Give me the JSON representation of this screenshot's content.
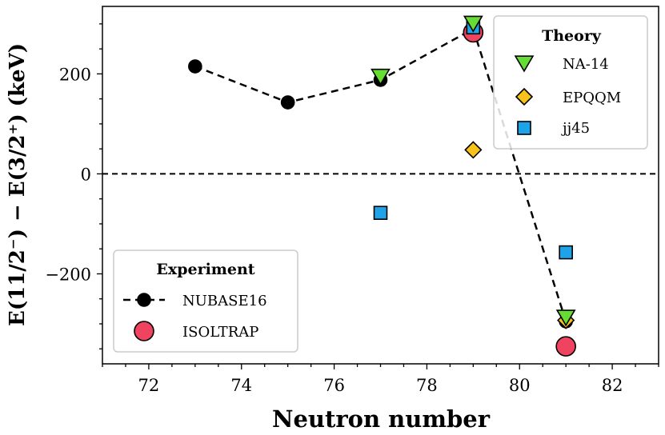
{
  "chart_data": {
    "type": "scatter",
    "xlabel": "Neutron number",
    "ylabel": "E(11/2⁻) − E(3/2⁺) (keV)",
    "xlim": [
      71.0,
      83.0
    ],
    "ylim": [
      -380,
      335
    ],
    "xticks": [
      72,
      74,
      76,
      78,
      80,
      82
    ],
    "yticks": [
      -200,
      0,
      200
    ],
    "xtick_labels": [
      "72",
      "74",
      "76",
      "78",
      "80",
      "82"
    ],
    "ytick_labels": [
      "−200",
      "0",
      "200"
    ],
    "zero_line": 0,
    "series": [
      {
        "name": "NUBASE16",
        "group": "Experiment",
        "marker": "circle",
        "line": "dashed",
        "color": "#000000",
        "x": [
          73,
          75,
          77,
          79,
          81
        ],
        "y": [
          215,
          143,
          188,
          290,
          -295
        ]
      },
      {
        "name": "ISOLTRAP",
        "group": "Experiment",
        "marker": "circle-large",
        "line": "none",
        "color": "#f0435f",
        "x": [
          79,
          81
        ],
        "y": [
          283,
          -345
        ]
      },
      {
        "name": "NA-14",
        "group": "Theory",
        "marker": "triangle-down",
        "line": "none",
        "color": "#66dd33",
        "x": [
          77,
          79,
          81
        ],
        "y": [
          195,
          301,
          -287
        ]
      },
      {
        "name": "EPQQM",
        "group": "Theory",
        "marker": "diamond",
        "line": "none",
        "color": "#f7c21a",
        "x": [
          79,
          81
        ],
        "y": [
          48,
          -293
        ]
      },
      {
        "name": "jj45",
        "group": "Theory",
        "marker": "square",
        "line": "none",
        "color": "#1fa3e8",
        "x": [
          77,
          79,
          81
        ],
        "y": [
          -78,
          293,
          -157
        ]
      }
    ],
    "legends": [
      {
        "title": "Theory",
        "position": "upper-right",
        "entries": [
          "NA-14",
          "EPQQM",
          "jj45"
        ]
      },
      {
        "title": "Experiment",
        "position": "lower-left",
        "entries": [
          "NUBASE16",
          "ISOLTRAP"
        ]
      }
    ]
  }
}
